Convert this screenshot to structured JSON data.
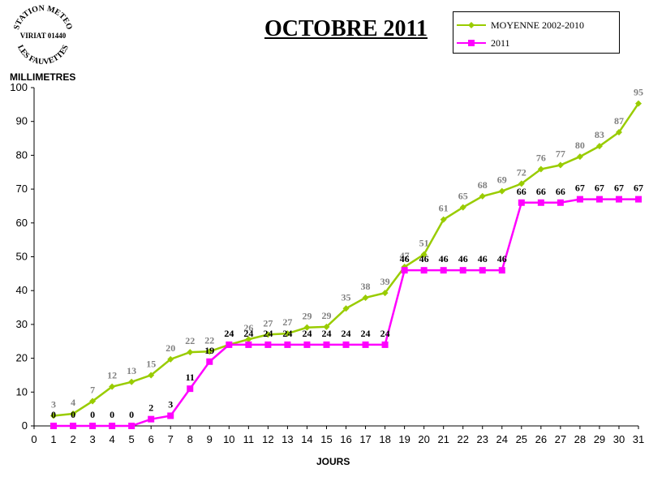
{
  "stamp": {
    "line1": "STATION METEO",
    "line2": "VIRIAT 01440",
    "line3": "LES FAUVETTES"
  },
  "chart_data": {
    "type": "line",
    "title": "OCTOBRE 2011",
    "xlabel": "JOURS",
    "ylabel": "MILLIMETRES",
    "x": [
      1,
      2,
      3,
      4,
      5,
      6,
      7,
      8,
      9,
      10,
      11,
      12,
      13,
      14,
      15,
      16,
      17,
      18,
      19,
      20,
      21,
      22,
      23,
      24,
      25,
      26,
      27,
      28,
      29,
      30,
      31
    ],
    "xlim": [
      0,
      31
    ],
    "ylim": [
      0,
      100
    ],
    "xticks": [
      0,
      1,
      2,
      3,
      4,
      5,
      6,
      7,
      8,
      9,
      10,
      11,
      12,
      13,
      14,
      15,
      16,
      17,
      18,
      19,
      20,
      21,
      22,
      23,
      24,
      25,
      26,
      27,
      28,
      29,
      30,
      31
    ],
    "yticks": [
      0,
      10,
      20,
      30,
      40,
      50,
      60,
      70,
      80,
      90,
      100
    ],
    "grid": false,
    "legend_position": "top-right",
    "series": [
      {
        "name": "MOYENNE 2002-2010",
        "color": "#99cc00",
        "label_color": "#808080",
        "marker": "diamond",
        "values": [
          3,
          4,
          7,
          12,
          13,
          15,
          20,
          22,
          22,
          24,
          26,
          27,
          27,
          29,
          29,
          35,
          38,
          39,
          47,
          51,
          61,
          65,
          68,
          69,
          72,
          76,
          77,
          80,
          83,
          87,
          95
        ],
        "plot_values": [
          3,
          3.6,
          7.3,
          11.6,
          13,
          15,
          19.7,
          21.8,
          22,
          24,
          25.6,
          27,
          27.3,
          29.1,
          29.3,
          34.7,
          37.9,
          39.3,
          47,
          50.7,
          61,
          64.6,
          67.9,
          69.4,
          71.6,
          75.9,
          77.1,
          79.6,
          82.7,
          86.8,
          95.3
        ]
      },
      {
        "name": "2011",
        "color": "#ff00ff",
        "label_color": "#000000",
        "marker": "square",
        "values": [
          0,
          0,
          0,
          0,
          0,
          2,
          3,
          11,
          19,
          24,
          24,
          24,
          24,
          24,
          24,
          24,
          24,
          24,
          46,
          46,
          46,
          46,
          46,
          46,
          66,
          66,
          66,
          67,
          67,
          67,
          67
        ]
      }
    ]
  }
}
